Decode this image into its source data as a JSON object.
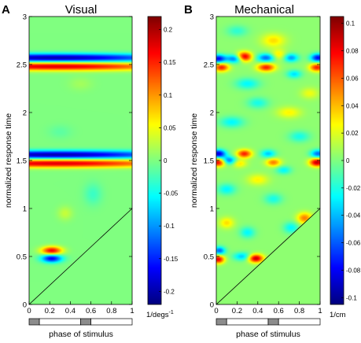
{
  "chart_data": [
    {
      "type": "heatmap",
      "panel_letter": "A",
      "title": "Visual",
      "xlabel": "phase of stimulus",
      "ylabel": "normalized response time",
      "xlim": [
        0,
        1
      ],
      "ylim": [
        0,
        3
      ],
      "x_ticks": [
        "0",
        "0.2",
        "0.4",
        "0.6",
        "0.8",
        "1"
      ],
      "y_ticks": [
        "0",
        "0.5",
        "1",
        "1.5",
        "2",
        "2.5",
        "3"
      ],
      "colorbar": {
        "unit_label": "1/degs",
        "unit_superscript": "-1",
        "ticks": [
          "0.2",
          "0.15",
          "0.1",
          "0.05",
          "0",
          "-0.05",
          "-0.1",
          "-0.15",
          "-0.2"
        ],
        "range": [
          -0.22,
          0.22
        ]
      },
      "background_level": 0.0,
      "diagonal": {
        "from": [
          0,
          0
        ],
        "to": [
          1,
          1
        ]
      },
      "stimulus_bar": [
        {
          "x0": 0.0,
          "x1": 0.1,
          "fill": "gray"
        },
        {
          "x0": 0.1,
          "x1": 0.5,
          "fill": "white"
        },
        {
          "x0": 0.5,
          "x1": 0.6,
          "fill": "gray"
        },
        {
          "x0": 0.6,
          "x1": 1.0,
          "fill": "white"
        }
      ],
      "features": [
        {
          "x": 0.25,
          "y": 2.57,
          "sx": 0.8,
          "sy": 0.03,
          "v": -0.2
        },
        {
          "x": 0.25,
          "y": 2.48,
          "sx": 0.8,
          "sy": 0.03,
          "v": 0.18
        },
        {
          "x": 0.25,
          "y": 1.56,
          "sx": 0.8,
          "sy": 0.03,
          "v": -0.2
        },
        {
          "x": 0.25,
          "y": 1.47,
          "sx": 0.8,
          "sy": 0.03,
          "v": 0.18
        },
        {
          "x": 0.22,
          "y": 0.56,
          "sx": 0.07,
          "sy": 0.03,
          "v": 0.17
        },
        {
          "x": 0.22,
          "y": 0.48,
          "sx": 0.07,
          "sy": 0.03,
          "v": -0.17
        },
        {
          "x": 0.62,
          "y": 1.15,
          "sx": 0.06,
          "sy": 0.08,
          "v": -0.03
        },
        {
          "x": 0.35,
          "y": 0.95,
          "sx": 0.05,
          "sy": 0.05,
          "v": 0.03
        },
        {
          "x": 0.5,
          "y": 2.3,
          "sx": 0.08,
          "sy": 0.05,
          "v": 0.015
        },
        {
          "x": 0.3,
          "y": 1.8,
          "sx": 0.08,
          "sy": 0.05,
          "v": -0.015
        }
      ]
    },
    {
      "type": "heatmap",
      "panel_letter": "B",
      "title": "Mechanical",
      "xlabel": "phase of stimulus",
      "ylabel": "normalized response time",
      "xlim": [
        0,
        1
      ],
      "ylim": [
        0,
        3
      ],
      "x_ticks": [
        "0",
        "0.2",
        "0.4",
        "0.6",
        "0.8",
        "1"
      ],
      "y_ticks": [
        "0",
        "0.5",
        "1",
        "1.5",
        "2",
        "2.5",
        "3"
      ],
      "colorbar": {
        "unit_label": "1/cm",
        "unit_superscript": "",
        "ticks": [
          "0.1",
          "0.08",
          "0.06",
          "0.04",
          "0.02",
          "0",
          "-0.02",
          "-0.04",
          "-0.06",
          "-0.08",
          "-0.1"
        ],
        "range": [
          -0.105,
          0.105
        ]
      },
      "background_level": 0.003,
      "diagonal": {
        "from": [
          0,
          0
        ],
        "to": [
          1,
          1
        ]
      },
      "stimulus_bar": [
        {
          "x0": 0.0,
          "x1": 0.1,
          "fill": "gray"
        },
        {
          "x0": 0.1,
          "x1": 0.5,
          "fill": "white"
        },
        {
          "x0": 0.5,
          "x1": 0.6,
          "fill": "gray"
        },
        {
          "x0": 0.6,
          "x1": 1.0,
          "fill": "white"
        }
      ],
      "features": [
        {
          "x": 0.02,
          "y": 2.56,
          "sx": 0.05,
          "sy": 0.03,
          "v": -0.08
        },
        {
          "x": 0.18,
          "y": 2.56,
          "sx": 0.06,
          "sy": 0.03,
          "v": -0.06
        },
        {
          "x": 0.27,
          "y": 2.58,
          "sx": 0.05,
          "sy": 0.035,
          "v": 0.09
        },
        {
          "x": 0.48,
          "y": 2.57,
          "sx": 0.06,
          "sy": 0.03,
          "v": -0.06
        },
        {
          "x": 0.72,
          "y": 2.57,
          "sx": 0.05,
          "sy": 0.03,
          "v": -0.05
        },
        {
          "x": 0.98,
          "y": 2.57,
          "sx": 0.05,
          "sy": 0.03,
          "v": -0.08
        },
        {
          "x": 0.05,
          "y": 2.47,
          "sx": 0.05,
          "sy": 0.03,
          "v": 0.07
        },
        {
          "x": 0.48,
          "y": 2.47,
          "sx": 0.06,
          "sy": 0.03,
          "v": 0.07
        },
        {
          "x": 0.97,
          "y": 2.47,
          "sx": 0.05,
          "sy": 0.03,
          "v": 0.07
        },
        {
          "x": 0.6,
          "y": 2.6,
          "sx": 0.05,
          "sy": 0.04,
          "v": 0.03
        },
        {
          "x": 0.02,
          "y": 1.57,
          "sx": 0.05,
          "sy": 0.03,
          "v": -0.09
        },
        {
          "x": 0.27,
          "y": 1.57,
          "sx": 0.05,
          "sy": 0.03,
          "v": 0.07
        },
        {
          "x": 0.5,
          "y": 1.57,
          "sx": 0.05,
          "sy": 0.03,
          "v": -0.04
        },
        {
          "x": 0.98,
          "y": 1.57,
          "sx": 0.05,
          "sy": 0.03,
          "v": -0.06
        },
        {
          "x": 0.02,
          "y": 1.48,
          "sx": 0.05,
          "sy": 0.03,
          "v": 0.08
        },
        {
          "x": 0.12,
          "y": 1.5,
          "sx": 0.05,
          "sy": 0.03,
          "v": -0.06
        },
        {
          "x": 0.55,
          "y": 1.48,
          "sx": 0.05,
          "sy": 0.03,
          "v": 0.05
        },
        {
          "x": 0.97,
          "y": 1.48,
          "sx": 0.05,
          "sy": 0.03,
          "v": 0.09
        },
        {
          "x": 0.22,
          "y": 1.47,
          "sx": 0.05,
          "sy": 0.03,
          "v": 0.03
        },
        {
          "x": 0.03,
          "y": 0.56,
          "sx": 0.04,
          "sy": 0.03,
          "v": -0.06
        },
        {
          "x": 0.02,
          "y": 0.47,
          "sx": 0.04,
          "sy": 0.03,
          "v": 0.08
        },
        {
          "x": 0.38,
          "y": 0.48,
          "sx": 0.05,
          "sy": 0.03,
          "v": 0.09
        },
        {
          "x": 0.25,
          "y": 0.5,
          "sx": 0.06,
          "sy": 0.03,
          "v": -0.04
        },
        {
          "x": 0.85,
          "y": 0.9,
          "sx": 0.05,
          "sy": 0.04,
          "v": 0.05
        },
        {
          "x": 0.72,
          "y": 0.8,
          "sx": 0.05,
          "sy": 0.04,
          "v": -0.03
        },
        {
          "x": 0.3,
          "y": 2.3,
          "sx": 0.08,
          "sy": 0.04,
          "v": -0.03
        },
        {
          "x": 0.7,
          "y": 2.0,
          "sx": 0.08,
          "sy": 0.04,
          "v": 0.025
        },
        {
          "x": 0.15,
          "y": 1.9,
          "sx": 0.08,
          "sy": 0.04,
          "v": -0.03
        },
        {
          "x": 0.55,
          "y": 2.75,
          "sx": 0.08,
          "sy": 0.05,
          "v": 0.03
        },
        {
          "x": 0.2,
          "y": 2.85,
          "sx": 0.07,
          "sy": 0.04,
          "v": -0.02
        },
        {
          "x": 0.8,
          "y": 1.75,
          "sx": 0.07,
          "sy": 0.04,
          "v": -0.025
        },
        {
          "x": 0.4,
          "y": 1.3,
          "sx": 0.07,
          "sy": 0.04,
          "v": 0.025
        },
        {
          "x": 0.1,
          "y": 1.2,
          "sx": 0.06,
          "sy": 0.04,
          "v": -0.03
        },
        {
          "x": 0.55,
          "y": 1.1,
          "sx": 0.06,
          "sy": 0.04,
          "v": -0.025
        },
        {
          "x": 0.1,
          "y": 0.85,
          "sx": 0.05,
          "sy": 0.04,
          "v": 0.03
        },
        {
          "x": 0.3,
          "y": 0.75,
          "sx": 0.05,
          "sy": 0.04,
          "v": -0.03
        },
        {
          "x": 0.9,
          "y": 2.2,
          "sx": 0.06,
          "sy": 0.04,
          "v": 0.02
        },
        {
          "x": 0.4,
          "y": 2.1,
          "sx": 0.07,
          "sy": 0.04,
          "v": -0.025
        },
        {
          "x": 0.75,
          "y": 2.4,
          "sx": 0.05,
          "sy": 0.03,
          "v": -0.035
        },
        {
          "x": 0.65,
          "y": 1.4,
          "sx": 0.05,
          "sy": 0.03,
          "v": -0.03
        }
      ]
    }
  ]
}
